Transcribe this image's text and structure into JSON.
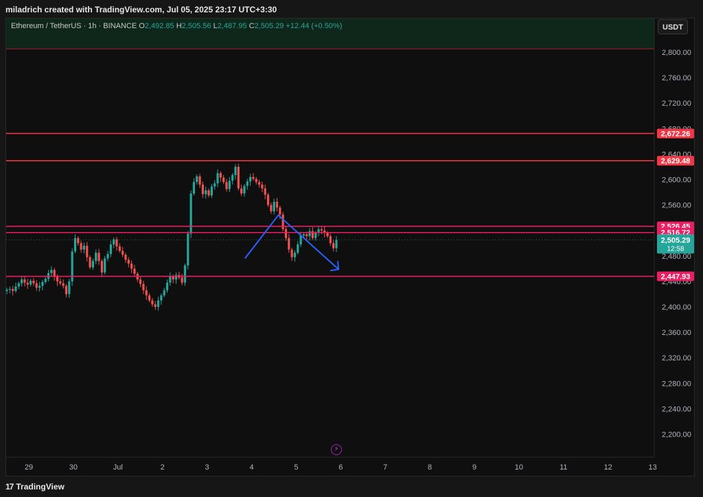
{
  "header": {
    "attribution": "miladrich created with TradingView.com, Jul 05, 2025 23:17 UTC+3:30"
  },
  "legend": {
    "symbol": "Ethereum / TetherUS · 1h · BINANCE",
    "o_label": "O",
    "o_value": "2,492.85",
    "h_label": "H",
    "h_value": "2,505.56",
    "l_label": "L",
    "l_value": "2,487.95",
    "c_label": "C",
    "c_value": "2,505.29",
    "change": "+12.44 (+0.50%)"
  },
  "currency_button": "USDT",
  "footer": {
    "brand": "TradingView"
  },
  "colors": {
    "up": "#26a69a",
    "down": "#ef5350",
    "level_line": "#f23645",
    "mid_level_line": "#e91e63",
    "arrow": "#2962ff",
    "price_tag": "#26a69a"
  },
  "chart_data": {
    "type": "candlestick",
    "ylim": [
      2170,
      2820
    ],
    "y_ticks": [
      "2,800.00",
      "2,760.00",
      "2,720.00",
      "2,680.00",
      "2,640.00",
      "2,600.00",
      "2,560.00",
      "2,520.00",
      "2,480.00",
      "2,440.00",
      "2,400.00",
      "2,360.00",
      "2,320.00",
      "2,280.00",
      "2,240.00",
      "2,200.00"
    ],
    "y_tick_values": [
      2800,
      2760,
      2720,
      2680,
      2640,
      2600,
      2560,
      2520,
      2480,
      2440,
      2400,
      2360,
      2320,
      2280,
      2240,
      2200
    ],
    "x_ticks": [
      "29",
      "30",
      "Jul",
      "2",
      "3",
      "4",
      "5",
      "6",
      "7",
      "8",
      "9",
      "10",
      "11",
      "12",
      "13"
    ],
    "horizontal_levels": [
      {
        "value": 2672.26,
        "label": "2,672.26",
        "color": "#f23645"
      },
      {
        "value": 2629.48,
        "label": "2,629.48",
        "color": "#f23645"
      },
      {
        "value": 2526.45,
        "label": "2,526.45",
        "color": "#e91e63"
      },
      {
        "value": 2516.72,
        "label": "2,516.72",
        "color": "#e91e63"
      },
      {
        "value": 2447.93,
        "label": "2,447.93",
        "color": "#e91e63"
      }
    ],
    "top_level": 2805,
    "current_price": {
      "value": 2505.29,
      "label": "2,505.29",
      "countdown": "12:58"
    },
    "projection_path": [
      {
        "x": 4.85,
        "y": 2476
      },
      {
        "x": 5.6,
        "y": 2544
      },
      {
        "x": 6.95,
        "y": 2459
      }
    ],
    "candles_close": [
      2427,
      2428,
      2425,
      2432,
      2437,
      2443,
      2438,
      2435,
      2441,
      2437,
      2430,
      2433,
      2439,
      2444,
      2453,
      2458,
      2447,
      2440,
      2437,
      2433,
      2420,
      2440,
      2487,
      2508,
      2500,
      2490,
      2496,
      2478,
      2462,
      2472,
      2485,
      2472,
      2454,
      2476,
      2483,
      2498,
      2506,
      2495,
      2488,
      2482,
      2474,
      2468,
      2460,
      2452,
      2443,
      2436,
      2426,
      2418,
      2410,
      2404,
      2400,
      2410,
      2418,
      2426,
      2438,
      2448,
      2443,
      2450,
      2446,
      2438,
      2465,
      2515,
      2578,
      2596,
      2605,
      2592,
      2577,
      2583,
      2575,
      2589,
      2594,
      2610,
      2603,
      2596,
      2585,
      2598,
      2607,
      2620,
      2586,
      2578,
      2590,
      2597,
      2604,
      2601,
      2596,
      2592,
      2586,
      2576,
      2560,
      2550,
      2565,
      2556,
      2545,
      2522,
      2508,
      2490,
      2478,
      2485,
      2498,
      2512,
      2514,
      2511,
      2519,
      2508,
      2516,
      2522,
      2520,
      2516,
      2511,
      2500,
      2492,
      2505
    ]
  }
}
